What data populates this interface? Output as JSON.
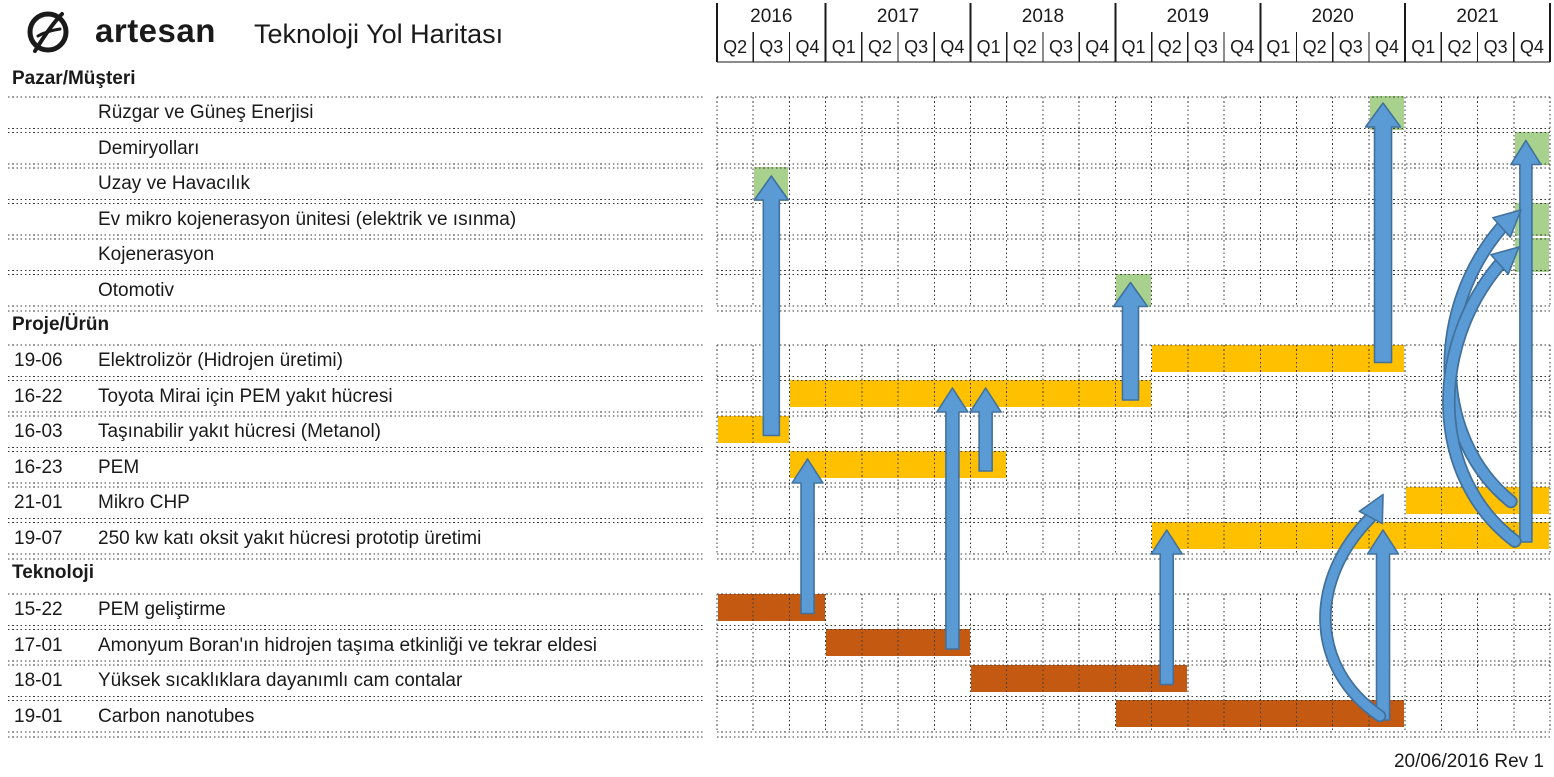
{
  "header": {
    "logo_text": "artesan",
    "title": "Teknoloji Yol Haritası"
  },
  "footer": {
    "revision": "20/06/2016 Rev 1"
  },
  "timeline": {
    "years": [
      {
        "label": "2016",
        "quarters": [
          "Q2",
          "Q3",
          "Q4"
        ]
      },
      {
        "label": "2017",
        "quarters": [
          "Q1",
          "Q2",
          "Q3",
          "Q4"
        ]
      },
      {
        "label": "2018",
        "quarters": [
          "Q1",
          "Q2",
          "Q3",
          "Q4"
        ]
      },
      {
        "label": "2019",
        "quarters": [
          "Q1",
          "Q2",
          "Q3",
          "Q4"
        ]
      },
      {
        "label": "2020",
        "quarters": [
          "Q1",
          "Q2",
          "Q3",
          "Q4"
        ]
      },
      {
        "label": "2021",
        "quarters": [
          "Q1",
          "Q2",
          "Q3",
          "Q4"
        ]
      }
    ]
  },
  "sections": [
    {
      "id": "market",
      "title": "Pazar/Müşteri",
      "rows": [
        {
          "id": "ruzgar",
          "code": "",
          "label": "Rüzgar ve Güneş Enerjisi"
        },
        {
          "id": "demiryollari",
          "code": "",
          "label": "Demiryolları"
        },
        {
          "id": "uzay",
          "code": "",
          "label": "Uzay ve Havacılık"
        },
        {
          "id": "ev-mikro",
          "code": "",
          "label": "Ev mikro kojenerasyon ünitesi (elektrik ve ısınma)"
        },
        {
          "id": "kojenerasyon",
          "code": "",
          "label": "Kojenerasyon"
        },
        {
          "id": "otomotiv",
          "code": "",
          "label": "Otomotiv"
        }
      ]
    },
    {
      "id": "project",
      "title": "Proje/Ürün",
      "rows": [
        {
          "id": "19-06",
          "code": "19-06",
          "label": "Elektrolizör (Hidrojen üretimi)"
        },
        {
          "id": "16-22",
          "code": "16-22",
          "label": "Toyota Mirai için PEM yakıt hücresi"
        },
        {
          "id": "16-03",
          "code": "16-03",
          "label": "Taşınabilir yakıt hücresi (Metanol)"
        },
        {
          "id": "16-23",
          "code": "16-23",
          "label": "PEM"
        },
        {
          "id": "21-01",
          "code": "21-01",
          "label": "Mikro CHP"
        },
        {
          "id": "19-07",
          "code": "19-07",
          "label": "250 kw katı oksit yakıt hücresi prototip üretimi"
        }
      ]
    },
    {
      "id": "tech",
      "title": "Teknoloji",
      "rows": [
        {
          "id": "15-22",
          "code": "15-22",
          "label": "PEM geliştirme"
        },
        {
          "id": "17-01",
          "code": "17-01",
          "label": "Amonyum Boran'ın hidrojen taşıma etkinliği ve tekrar eldesi"
        },
        {
          "id": "18-01",
          "code": "18-01",
          "label": "Yüksek sıcaklıklara dayanımlı cam contalar"
        },
        {
          "id": "19-01",
          "code": "19-01",
          "label": "Carbon nanotubes"
        }
      ]
    }
  ],
  "chart_data": {
    "type": "table",
    "title": "Teknoloji Yol Haritası",
    "bars": [
      {
        "row": "19-06",
        "start": "2019-Q2",
        "end": "2020-Q4"
      },
      {
        "row": "16-22",
        "start": "2016-Q4",
        "end": "2019-Q1"
      },
      {
        "row": "16-03",
        "start": "2016-Q2",
        "end": "2016-Q3"
      },
      {
        "row": "16-23",
        "start": "2016-Q4",
        "end": "2018-Q1"
      },
      {
        "row": "21-01",
        "start": "2021-Q1",
        "end": "2021-Q4"
      },
      {
        "row": "19-07",
        "start": "2019-Q2",
        "end": "2021-Q4"
      },
      {
        "row": "15-22",
        "start": "2016-Q2",
        "end": "2016-Q4"
      },
      {
        "row": "17-01",
        "start": "2017-Q1",
        "end": "2017-Q4"
      },
      {
        "row": "18-01",
        "start": "2018-Q1",
        "end": "2019-Q2"
      },
      {
        "row": "19-01",
        "start": "2019-Q1",
        "end": "2020-Q4"
      }
    ],
    "milestones": [
      {
        "row": "uzay",
        "quarter": "2016-Q3"
      },
      {
        "row": "otomotiv",
        "quarter": "2019-Q1"
      },
      {
        "row": "ruzgar",
        "quarter": "2020-Q4"
      },
      {
        "row": "demiryollari",
        "quarter": "2021-Q4"
      },
      {
        "row": "ev-mikro",
        "quarter": "2021-Q4"
      },
      {
        "row": "kojenerasyon",
        "quarter": "2021-Q4"
      }
    ],
    "arrows": [
      {
        "from": {
          "row": "16-03",
          "quarter": "2016-Q3"
        },
        "to": {
          "row": "uzay",
          "quarter": "2016-Q3"
        },
        "style": "straight"
      },
      {
        "from": {
          "row": "15-22",
          "quarter": "2016-Q4"
        },
        "to": {
          "row": "16-23",
          "quarter": "2016-Q4"
        },
        "style": "straight"
      },
      {
        "from": {
          "row": "17-01",
          "quarter": "2017-Q4"
        },
        "to": {
          "row": "16-22",
          "quarter": "2017-Q4"
        },
        "style": "straight"
      },
      {
        "from": {
          "row": "16-23",
          "quarter": "2018-Q1"
        },
        "to": {
          "row": "16-22",
          "quarter": "2018-Q1"
        },
        "style": "straight"
      },
      {
        "from": {
          "row": "16-22",
          "quarter": "2019-Q1"
        },
        "to": {
          "row": "otomotiv",
          "quarter": "2019-Q1"
        },
        "style": "straight"
      },
      {
        "from": {
          "row": "18-01",
          "quarter": "2019-Q2"
        },
        "to": {
          "row": "19-07",
          "quarter": "2019-Q2"
        },
        "style": "straight"
      },
      {
        "from": {
          "row": "19-01",
          "quarter": "2020-Q4"
        },
        "to": {
          "row": "19-07",
          "quarter": "2020-Q4"
        },
        "style": "straight"
      },
      {
        "from": {
          "row": "19-06",
          "quarter": "2020-Q4"
        },
        "to": {
          "row": "ruzgar",
          "quarter": "2020-Q4"
        },
        "style": "straight"
      },
      {
        "from": {
          "row": "19-07",
          "quarter": "2021-Q4"
        },
        "to": {
          "row": "demiryollari",
          "quarter": "2021-Q4"
        },
        "style": "straight"
      },
      {
        "from": {
          "row": "19-01",
          "quarter": "2020-Q4"
        },
        "to": {
          "row": "21-01",
          "quarter": "2020-Q4"
        },
        "style": "curve"
      },
      {
        "from": {
          "row": "21-01",
          "quarter": "2021-Q4"
        },
        "to": {
          "row": "ev-mikro",
          "quarter": "2021-Q4"
        },
        "style": "curve"
      },
      {
        "from": {
          "row": "19-07",
          "quarter": "2021-Q4"
        },
        "to": {
          "row": "kojenerasyon",
          "quarter": "2021-Q4"
        },
        "style": "curve"
      }
    ]
  },
  "colors": {
    "project_bar": "#FFC000",
    "tech_bar": "#C45911",
    "milestone": "#A9D18E",
    "arrow_fill": "#5B9BD5",
    "arrow_edge": "#41719C",
    "grid_dots": "#3a3a3a",
    "header_lines": "#1a1a1a"
  }
}
